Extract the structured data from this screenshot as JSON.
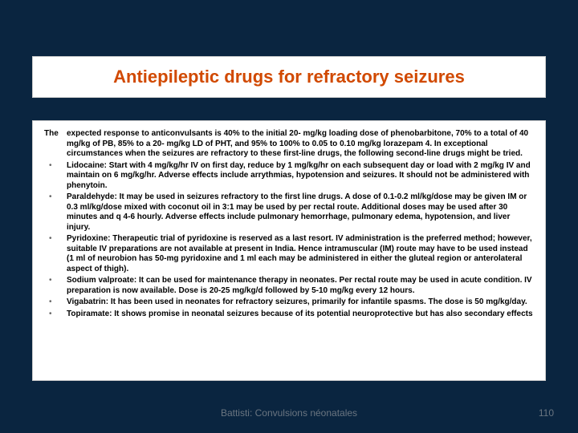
{
  "title": "Antiepileptic drugs for refractory seizures",
  "intro_label": "The",
  "intro": "expected response to anticonvulsants is 40% to the initial 20- mg/kg loading dose of phenobarbitone, 70% to a total of 40 mg/kg of PB, 85% to a 20- mg/kg LD of PHT, and 95% to 100% to 0.05 to 0.10 mg/kg lorazepam 4. In exceptional circumstances when the seizures are refractory to these first-line drugs, the following second-line drugs might be tried.",
  "bullets": [
    "Lidocaine: Start with 4 mg/kg/hr IV on first day, reduce by 1 mg/kg/hr on each subsequent day or load with 2 mg/kg IV and maintain on 6 mg/kg/hr. Adverse effects include arrythmias, hypotension and seizures. It should not be administered with phenytoin.",
    "Paraldehyde: It may be used in seizures refractory to the first line drugs. A dose of 0.1-0.2 ml/kg/dose may be given IM or 0.3 ml/kg/dose mixed with coconut oil in 3:1 may be used by per rectal route. Additional doses may be used after 30 minutes and q 4-6 hourly. Adverse effects include pulmonary hemorrhage, pulmonary edema, hypotension, and liver injury.",
    "Pyridoxine: Therapeutic trial of pyridoxine is reserved as a last resort. IV administration is the preferred method; however, suitable IV preparations are not available at present in India. Hence intramuscular (IM) route may have to be used instead (1 ml of neurobion has 50-mg pyridoxine and 1 ml each may be administered in either the gluteal region or anterolateral aspect of thigh).",
    "Sodium valproate: It can be used for maintenance therapy in neonates. Per rectal route may be used in acute condition. IV preparation is now available. Dose is 20-25 mg/kg/d followed by 5-10 mg/kg every 12 hours.",
    "Vigabatrin: It has been used in neonates for refractory seizures, primarily for infantile spasms. The dose is 50 mg/kg/day.",
    "Topiramate: It shows promise in neonatal seizures because of its potential neuroprotective but has also secondary effects"
  ],
  "footer": "Battisti: Convulsions néonatales",
  "page_number": "110",
  "colors": {
    "background": "#0a2540",
    "title_color": "#d14900",
    "box_bg": "#ffffff",
    "box_border": "#cccccc",
    "text_color": "#000000",
    "footer_color": "#6a7580"
  }
}
